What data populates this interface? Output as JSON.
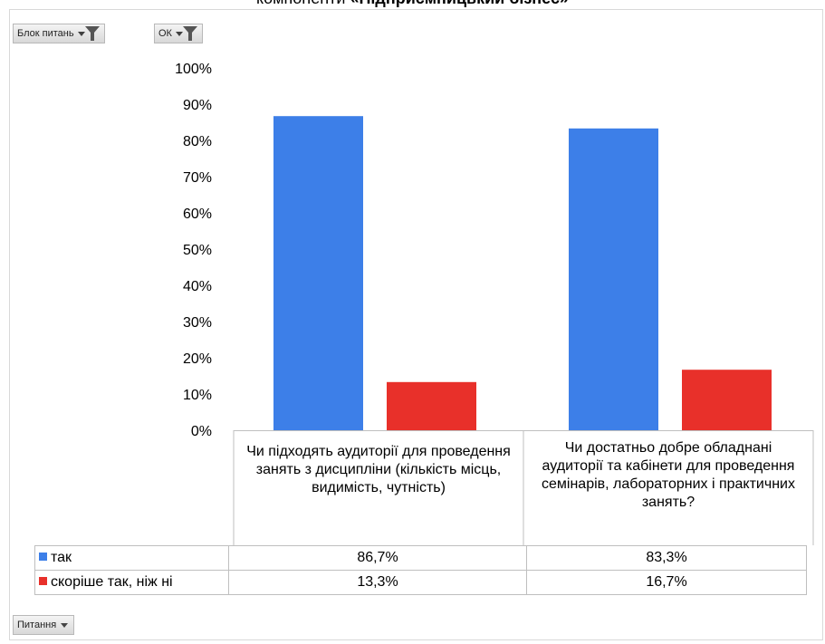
{
  "title": {
    "prefix": "компоненти ",
    "bold": "«Підприємницький бізнес»"
  },
  "filters": {
    "block": {
      "label": "Блок питань"
    },
    "ok": {
      "label": "ОК"
    },
    "questions": {
      "label": "Питання"
    }
  },
  "chart_data": {
    "type": "bar",
    "categories": [
      "Чи підходять аудиторії для проведення занять з дисципліни (кількість місць, видимість, чутність)",
      "Чи достатньо добре обладнані аудиторії та кабінети для проведення семінарів, лабораторних і практичних занять?"
    ],
    "series": [
      {
        "name": "так",
        "values": [
          86.7,
          83.3
        ],
        "labels": [
          "86,7%",
          "83,3%"
        ],
        "color": "#3d7fe8"
      },
      {
        "name": "скоріше так, ніж ні",
        "values": [
          13.3,
          16.7
        ],
        "labels": [
          "13,3%",
          "16,7%"
        ],
        "color": "#e8302a"
      }
    ],
    "ylim": [
      0,
      100
    ],
    "yticks": [
      "0%",
      "10%",
      "20%",
      "30%",
      "40%",
      "50%",
      "60%",
      "70%",
      "80%",
      "90%",
      "100%"
    ],
    "grid": false,
    "legend": "data-table-below"
  }
}
